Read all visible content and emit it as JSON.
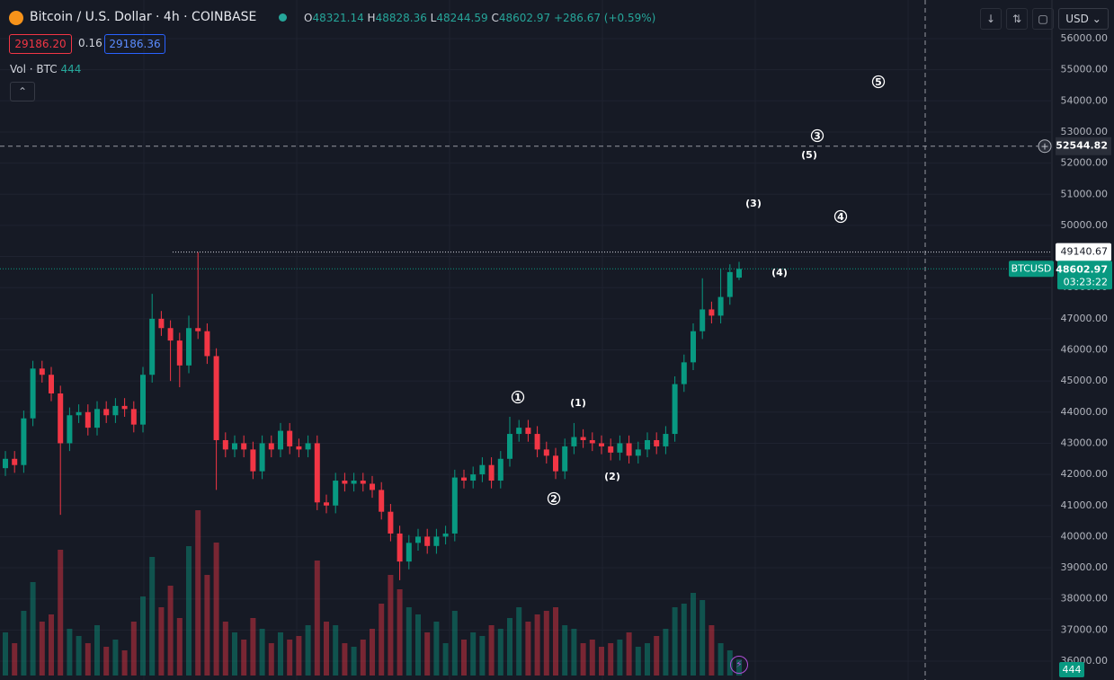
{
  "header": {
    "symbol": "Bitcoin / U.S. Dollar · 4h · COINBASE",
    "o_label": "O",
    "open": "48321.14",
    "h_label": "H",
    "high": "48828.36",
    "l_label": "L",
    "low": "48244.59",
    "c_label": "C",
    "close": "48602.97",
    "change": "+286.67 (+0.59%)",
    "sell": "29186.20",
    "spread": "0.16",
    "buy": "29186.36",
    "vol_label": "Vol · BTC",
    "vol_value": "444",
    "currency": "USD"
  },
  "chart_data": {
    "type": "candlestick",
    "open": [
      42200,
      42500,
      42300,
      43800,
      45400,
      45200,
      44600,
      43000,
      43900,
      44000,
      43500,
      44100,
      43900,
      44200,
      44100,
      43600,
      45200,
      47000,
      46700,
      46300,
      45500,
      46700,
      46600,
      45800,
      43100,
      42800,
      43000,
      42800,
      42100,
      43000,
      42800,
      43400,
      42900,
      42800,
      43000,
      41100,
      41000,
      41800,
      41700,
      41800,
      41700,
      41500,
      40800,
      40100,
      39200,
      39800,
      40000,
      39700,
      40000,
      40100,
      41900,
      41800,
      42000,
      42300,
      41800,
      42500,
      43300,
      43500,
      43300,
      42800,
      42600,
      42100,
      42900,
      43200,
      43100,
      43000,
      42900,
      42700,
      43000,
      42600,
      42800,
      43100,
      42900,
      43300,
      44900,
      45600,
      46600,
      47300,
      47100,
      47700,
      48321.14
    ],
    "high": [
      42750,
      42750,
      44050,
      45650,
      45650,
      45450,
      44850,
      44150,
      44250,
      44250,
      44350,
      44350,
      44450,
      44450,
      44350,
      45450,
      47800,
      47250,
      46950,
      46550,
      47100,
      49140.67,
      46850,
      46050,
      43350,
      43250,
      43250,
      43050,
      43250,
      43250,
      43650,
      43650,
      43150,
      43250,
      43250,
      41350,
      42050,
      42050,
      42050,
      42050,
      41950,
      41750,
      41050,
      40350,
      40050,
      40250,
      40250,
      40250,
      40350,
      42150,
      42150,
      42250,
      42550,
      42550,
      42750,
      43850,
      43750,
      43750,
      43550,
      43050,
      42850,
      43150,
      43650,
      43450,
      43350,
      43250,
      43150,
      43250,
      43250,
      43050,
      43350,
      43350,
      43550,
      45150,
      45850,
      46850,
      48300,
      47550,
      48600,
      48750,
      48828.36
    ],
    "low": [
      41950,
      42050,
      42050,
      43550,
      44950,
      44350,
      40700,
      42750,
      43650,
      43250,
      43250,
      43650,
      43650,
      43850,
      43350,
      43350,
      44950,
      46450,
      45000,
      44800,
      45250,
      46350,
      45550,
      41500,
      42550,
      42550,
      42550,
      41850,
      41850,
      42550,
      42550,
      42650,
      42550,
      42550,
      40850,
      40750,
      40750,
      41450,
      41450,
      41450,
      41250,
      40550,
      39850,
      38600,
      38950,
      39550,
      39450,
      39450,
      39750,
      39850,
      41550,
      41550,
      41750,
      41550,
      41550,
      42250,
      43050,
      43050,
      42550,
      42350,
      41850,
      41850,
      42650,
      42850,
      42750,
      42650,
      42450,
      42450,
      42350,
      42350,
      42550,
      42650,
      42650,
      43050,
      44650,
      45350,
      46350,
      46850,
      46850,
      47450,
      48244.59
    ],
    "close": [
      42500,
      42300,
      43800,
      45400,
      45200,
      44600,
      43000,
      43900,
      44000,
      43500,
      44100,
      43900,
      44200,
      44100,
      43600,
      45200,
      47000,
      46700,
      46300,
      45500,
      46700,
      46600,
      45800,
      43100,
      42800,
      43000,
      42800,
      42100,
      43000,
      42800,
      43400,
      42900,
      42800,
      43000,
      41100,
      41000,
      41800,
      41700,
      41800,
      41700,
      41500,
      40800,
      40100,
      39200,
      39800,
      40000,
      39700,
      40000,
      40100,
      41900,
      41800,
      42000,
      42300,
      41800,
      42500,
      43300,
      43500,
      43300,
      42800,
      42600,
      42100,
      42900,
      43200,
      43100,
      43000,
      42900,
      42700,
      43000,
      42600,
      42800,
      43100,
      42900,
      43300,
      44900,
      45600,
      46600,
      47300,
      47100,
      47700,
      48500,
      48602.97
    ],
    "volume": [
      1200,
      900,
      1800,
      2600,
      1500,
      1700,
      3500,
      1300,
      1100,
      900,
      1400,
      800,
      1000,
      700,
      1500,
      2200,
      3300,
      1900,
      2500,
      1600,
      3600,
      4600,
      2800,
      3700,
      1500,
      1200,
      1000,
      1600,
      1300,
      900,
      1200,
      1000,
      1100,
      1400,
      3200,
      1500,
      1400,
      900,
      800,
      1000,
      1300,
      2000,
      2800,
      2400,
      1900,
      1700,
      1200,
      1500,
      900,
      1800,
      1000,
      1200,
      1100,
      1400,
      1300,
      1600,
      1900,
      1500,
      1700,
      1800,
      1900,
      1400,
      1300,
      900,
      1000,
      800,
      900,
      1000,
      1200,
      800,
      900,
      1100,
      1300,
      1900,
      2000,
      2300,
      2100,
      1400,
      900,
      700,
      444
    ],
    "up_color": "#089981",
    "down_color": "#f23645",
    "ylim": [
      35394,
      57241
    ],
    "vlim": [
      0,
      5000
    ],
    "grid": true,
    "yticks": [
      {
        "value": 56000,
        "label": "56000.00"
      },
      {
        "value": 55000,
        "label": "55000.00"
      },
      {
        "value": 54000,
        "label": "54000.00"
      },
      {
        "value": 53000,
        "label": "53000.00"
      },
      {
        "value": 52000,
        "label": "52000.00"
      },
      {
        "value": 51000,
        "label": "51000.00"
      },
      {
        "value": 50000,
        "label": "50000.00"
      },
      {
        "value": 49000,
        "label": "49000.00"
      },
      {
        "value": 48000,
        "label": "48000.00"
      },
      {
        "value": 47000,
        "label": "47000.00"
      },
      {
        "value": 46000,
        "label": "46000.00"
      },
      {
        "value": 45000,
        "label": "45000.00"
      },
      {
        "value": 44000,
        "label": "44000.00"
      },
      {
        "value": 43000,
        "label": "43000.00"
      },
      {
        "value": 42000,
        "label": "42000.00"
      },
      {
        "value": 41000,
        "label": "41000.00"
      },
      {
        "value": 40000,
        "label": "40000.00"
      },
      {
        "value": 39000,
        "label": "39000.00"
      },
      {
        "value": 38000,
        "label": "38000.00"
      },
      {
        "value": 37000,
        "label": "37000.00"
      },
      {
        "value": 36000,
        "label": "36000.00"
      }
    ],
    "crosshair_price": 52544.82,
    "high_line": 49140.67,
    "last_price": 48602.97,
    "last_name": "BTCUSD",
    "countdown": "03:23:22",
    "last_volume": 444,
    "annotations": [
      {
        "label": "1",
        "price": 44485,
        "circled": true
      },
      {
        "label": "(1)",
        "price": 44310,
        "circled": false
      },
      {
        "label": "2",
        "price": 41224,
        "circled": true
      },
      {
        "label": "(2)",
        "price": 41945,
        "circled": false
      },
      {
        "label": "3",
        "price": 52883,
        "circled": true
      },
      {
        "label": "(3)",
        "price": 50719,
        "circled": false
      },
      {
        "label": "4",
        "price": 50286,
        "circled": true
      },
      {
        "label": "(4)",
        "price": 48496,
        "circled": false
      },
      {
        "label": "5",
        "price": 54615,
        "circled": true
      },
      {
        "label": "(5)",
        "price": 52277,
        "circled": false
      }
    ]
  }
}
